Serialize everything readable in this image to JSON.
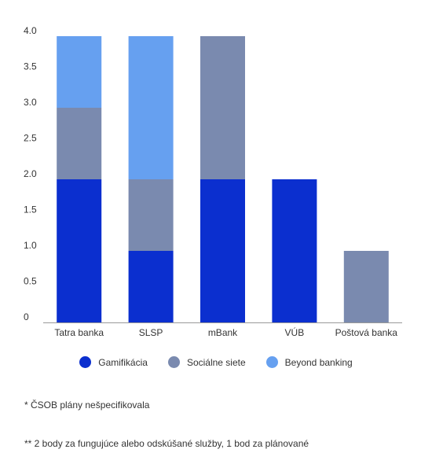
{
  "chart_data": {
    "type": "bar",
    "stacked": true,
    "categories": [
      "Tatra banka",
      "SLSP",
      "mBank",
      "VÚB",
      "Poštová banka"
    ],
    "series": [
      {
        "name": "Gamifikácia",
        "color": "#0b2fcf",
        "values": [
          2,
          1,
          2,
          2,
          0
        ]
      },
      {
        "name": "Sociálne siete",
        "color": "#7a8aaf",
        "values": [
          1,
          1,
          2,
          0,
          1
        ]
      },
      {
        "name": "Beyond banking",
        "color": "#66a0f0",
        "values": [
          1,
          2,
          0,
          0,
          0
        ]
      }
    ],
    "yticks": [
      "0",
      "0.5",
      "1.0",
      "1.5",
      "2.0",
      "2.5",
      "3.0",
      "3.5",
      "4.0"
    ],
    "ylim": [
      0,
      4
    ],
    "grid": false,
    "legend_position": "bottom"
  },
  "notes": [
    "* ČSOB plány nešpecifikovala",
    "** 2 body za fungujúce alebo odskúšané služby, 1 bod za plánované"
  ]
}
